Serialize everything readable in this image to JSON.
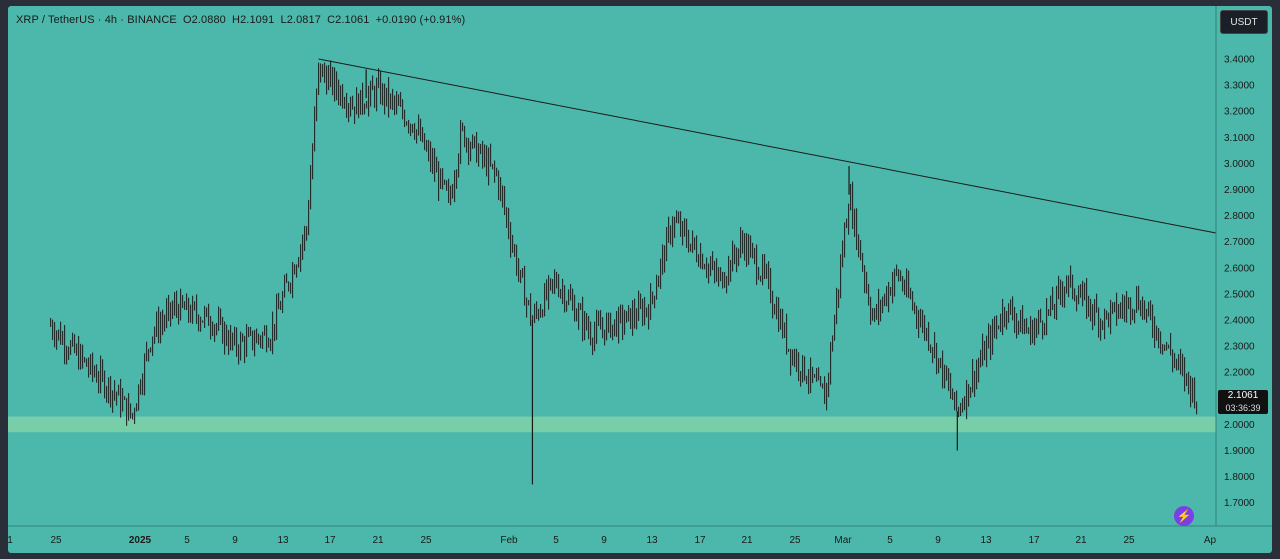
{
  "legend": {
    "symbol": "XRP / TetherUS · 4h · BINANCE",
    "open": "O2.0880",
    "high": "H2.1091",
    "low": "L2.0817",
    "close": "C2.1061",
    "change": "+0.0190 (+0.91%)"
  },
  "unit_label": "USDT",
  "price_tag": {
    "price": "2.1061",
    "countdown": "03:36:39"
  },
  "logo_icon": "lightning-icon",
  "colors": {
    "background": "#4bb8ab",
    "candles": "#1a1a1a",
    "support_zone": "#7fd1a8"
  },
  "chart_data": {
    "type": "candlestick",
    "title": "",
    "ylim": [
      1.65,
      3.5
    ],
    "y_ticks": [
      "3.4000",
      "3.3000",
      "3.2000",
      "3.1000",
      "3.0000",
      "2.9000",
      "2.8000",
      "2.7000",
      "2.6000",
      "2.5000",
      "2.4000",
      "2.3000",
      "2.2000",
      "2.1000",
      "2.0000",
      "1.9000",
      "1.8000",
      "1.7000"
    ],
    "x_ticks": [
      "1",
      "25",
      "2025",
      "5",
      "9",
      "13",
      "17",
      "21",
      "25",
      "Feb",
      "5",
      "9",
      "13",
      "17",
      "21",
      "25",
      "Mar",
      "5",
      "9",
      "13",
      "17",
      "21",
      "25",
      "Ap"
    ],
    "approx_price_path": [
      {
        "date": "Dec 21",
        "price": 2.38
      },
      {
        "date": "Dec 25",
        "price": 2.24
      },
      {
        "date": "Dec 29",
        "price": 2.12
      },
      {
        "date": "Dec 31",
        "price": 2.03
      },
      {
        "date": "Jan 2",
        "price": 2.35
      },
      {
        "date": "Jan 4",
        "price": 2.45
      },
      {
        "date": "Jan 7",
        "price": 2.4
      },
      {
        "date": "Jan 9",
        "price": 2.3
      },
      {
        "date": "Jan 12",
        "price": 2.35
      },
      {
        "date": "Jan 15",
        "price": 2.75
      },
      {
        "date": "Jan 16",
        "price": 3.36
      },
      {
        "date": "Jan 19",
        "price": 3.22
      },
      {
        "date": "Jan 21",
        "price": 3.28
      },
      {
        "date": "Jan 24",
        "price": 3.15
      },
      {
        "date": "Jan 27",
        "price": 2.85
      },
      {
        "date": "Jan 28",
        "price": 3.12
      },
      {
        "date": "Jan 31",
        "price": 2.95
      },
      {
        "date": "Feb 2",
        "price": 2.55
      },
      {
        "date": "Feb 3",
        "price": 2.4
      },
      {
        "date": "Feb 5",
        "price": 2.55
      },
      {
        "date": "Feb 8",
        "price": 2.35
      },
      {
        "date": "Feb 11",
        "price": 2.4
      },
      {
        "date": "Feb 13",
        "price": 2.45
      },
      {
        "date": "Feb 15",
        "price": 2.78
      },
      {
        "date": "Feb 19",
        "price": 2.55
      },
      {
        "date": "Feb 21",
        "price": 2.7
      },
      {
        "date": "Feb 23",
        "price": 2.55
      },
      {
        "date": "Feb 25",
        "price": 2.28
      },
      {
        "date": "Feb 28",
        "price": 2.1
      },
      {
        "date": "Mar 2",
        "price": 2.88
      },
      {
        "date": "Mar 4",
        "price": 2.4
      },
      {
        "date": "Mar 6",
        "price": 2.58
      },
      {
        "date": "Mar 9",
        "price": 2.3
      },
      {
        "date": "Mar 11",
        "price": 2.05
      },
      {
        "date": "Mar 13",
        "price": 2.25
      },
      {
        "date": "Mar 15",
        "price": 2.45
      },
      {
        "date": "Mar 17",
        "price": 2.35
      },
      {
        "date": "Mar 19",
        "price": 2.45
      },
      {
        "date": "Mar 20",
        "price": 2.55
      },
      {
        "date": "Mar 23",
        "price": 2.4
      },
      {
        "date": "Mar 26",
        "price": 2.48
      },
      {
        "date": "Mar 29",
        "price": 2.25
      },
      {
        "date": "Mar 31",
        "price": 2.1
      }
    ],
    "trendline": {
      "start": {
        "date": "Jan 16",
        "price": 3.4
      },
      "end": {
        "date": "Apr 3",
        "price": 2.72
      }
    },
    "support_zone": {
      "from": 1.97,
      "to": 2.03
    },
    "wicks": [
      {
        "date": "Feb 3",
        "low": 1.77
      },
      {
        "date": "Mar 11",
        "low": 1.9
      },
      {
        "date": "Mar 2",
        "high": 2.99
      },
      {
        "date": "Jan 20",
        "high": 3.36
      }
    ]
  }
}
